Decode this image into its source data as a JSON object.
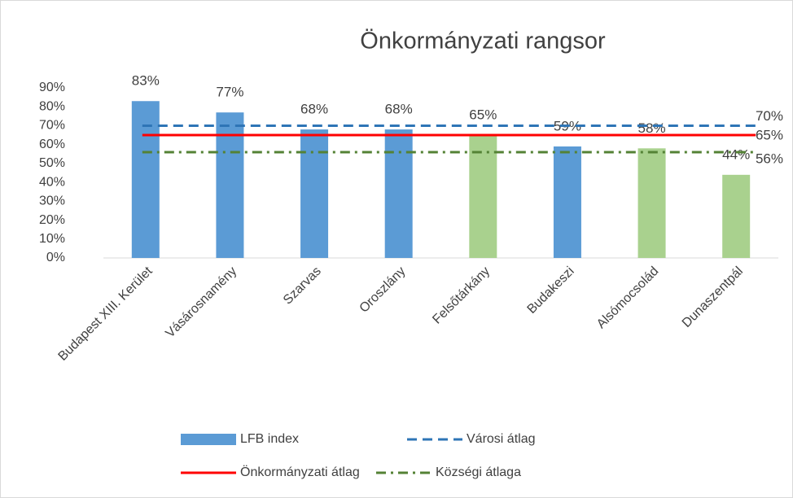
{
  "chart_data": {
    "type": "bar",
    "title": "Önkormányzati rangsor",
    "categories": [
      "Budapest XIII. Kerület",
      "Vásárosnamény",
      "Szarvas",
      "Oroszlány",
      "Felsőtárkány",
      "Budakeszi",
      "Alsómocsolád",
      "Dunaszentpál"
    ],
    "series": [
      {
        "name": "LFB index",
        "type": "bar",
        "values": [
          83,
          77,
          68,
          68,
          65,
          59,
          58,
          44
        ],
        "value_labels": [
          "83%",
          "77%",
          "68%",
          "68%",
          "65%",
          "59%",
          "58%",
          "44%"
        ],
        "colors": [
          "#5b9bd5",
          "#5b9bd5",
          "#5b9bd5",
          "#5b9bd5",
          "#a9d18e",
          "#5b9bd5",
          "#a9d18e",
          "#a9d18e"
        ]
      },
      {
        "name": "Városi átlag",
        "type": "line",
        "value": 70,
        "value_label": "70%",
        "color": "#2e75b6",
        "dash": "dashed"
      },
      {
        "name": "Önkormányzati átlag",
        "type": "line",
        "value": 65,
        "value_label": "65%",
        "color": "#ff0000",
        "dash": "solid"
      },
      {
        "name": "Községi átlaga",
        "type": "line",
        "value": 56,
        "value_label": "56%",
        "color": "#548235",
        "dash": "dashdot"
      }
    ],
    "ylim": [
      0,
      90
    ],
    "yticks": [
      {
        "value": 0,
        "label": "0%"
      },
      {
        "value": 10,
        "label": "10%"
      },
      {
        "value": 20,
        "label": "20%"
      },
      {
        "value": 30,
        "label": "30%"
      },
      {
        "value": 40,
        "label": "40%"
      },
      {
        "value": 50,
        "label": "50%"
      },
      {
        "value": 60,
        "label": "60%"
      },
      {
        "value": 70,
        "label": "70%"
      },
      {
        "value": 80,
        "label": "80%"
      },
      {
        "value": 90,
        "label": "90%"
      }
    ],
    "grid": false,
    "legend": "bottom"
  }
}
